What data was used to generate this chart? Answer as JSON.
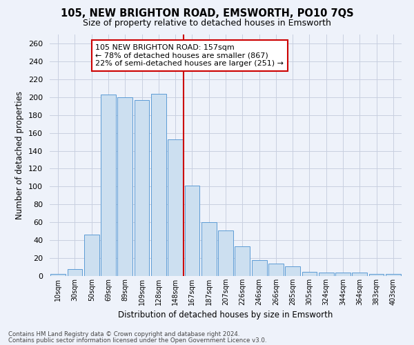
{
  "title": "105, NEW BRIGHTON ROAD, EMSWORTH, PO10 7QS",
  "subtitle": "Size of property relative to detached houses in Emsworth",
  "xlabel": "Distribution of detached houses by size in Emsworth",
  "ylabel": "Number of detached properties",
  "categories": [
    "10sqm",
    "30sqm",
    "50sqm",
    "69sqm",
    "89sqm",
    "109sqm",
    "128sqm",
    "148sqm",
    "167sqm",
    "187sqm",
    "207sqm",
    "226sqm",
    "246sqm",
    "266sqm",
    "285sqm",
    "305sqm",
    "324sqm",
    "344sqm",
    "364sqm",
    "383sqm",
    "403sqm"
  ],
  "values": [
    2,
    8,
    46,
    203,
    200,
    197,
    204,
    153,
    101,
    60,
    51,
    33,
    18,
    14,
    11,
    5,
    4,
    4,
    4,
    2,
    2
  ],
  "bar_color": "#ccdff0",
  "bar_edge_color": "#5b9bd5",
  "vline_color": "#cc0000",
  "annotation_line1": "105 NEW BRIGHTON ROAD: 157sqm",
  "annotation_line2": "← 78% of detached houses are smaller (867)",
  "annotation_line3": "22% of semi-detached houses are larger (251) →",
  "annotation_box_color": "#ffffff",
  "annotation_box_edge": "#cc0000",
  "ylim": [
    0,
    270
  ],
  "yticks": [
    0,
    20,
    40,
    60,
    80,
    100,
    120,
    140,
    160,
    180,
    200,
    220,
    240,
    260
  ],
  "footer1": "Contains HM Land Registry data © Crown copyright and database right 2024.",
  "footer2": "Contains public sector information licensed under the Open Government Licence v3.0.",
  "bg_color": "#eef2fa",
  "grid_color": "#c8cfe0"
}
